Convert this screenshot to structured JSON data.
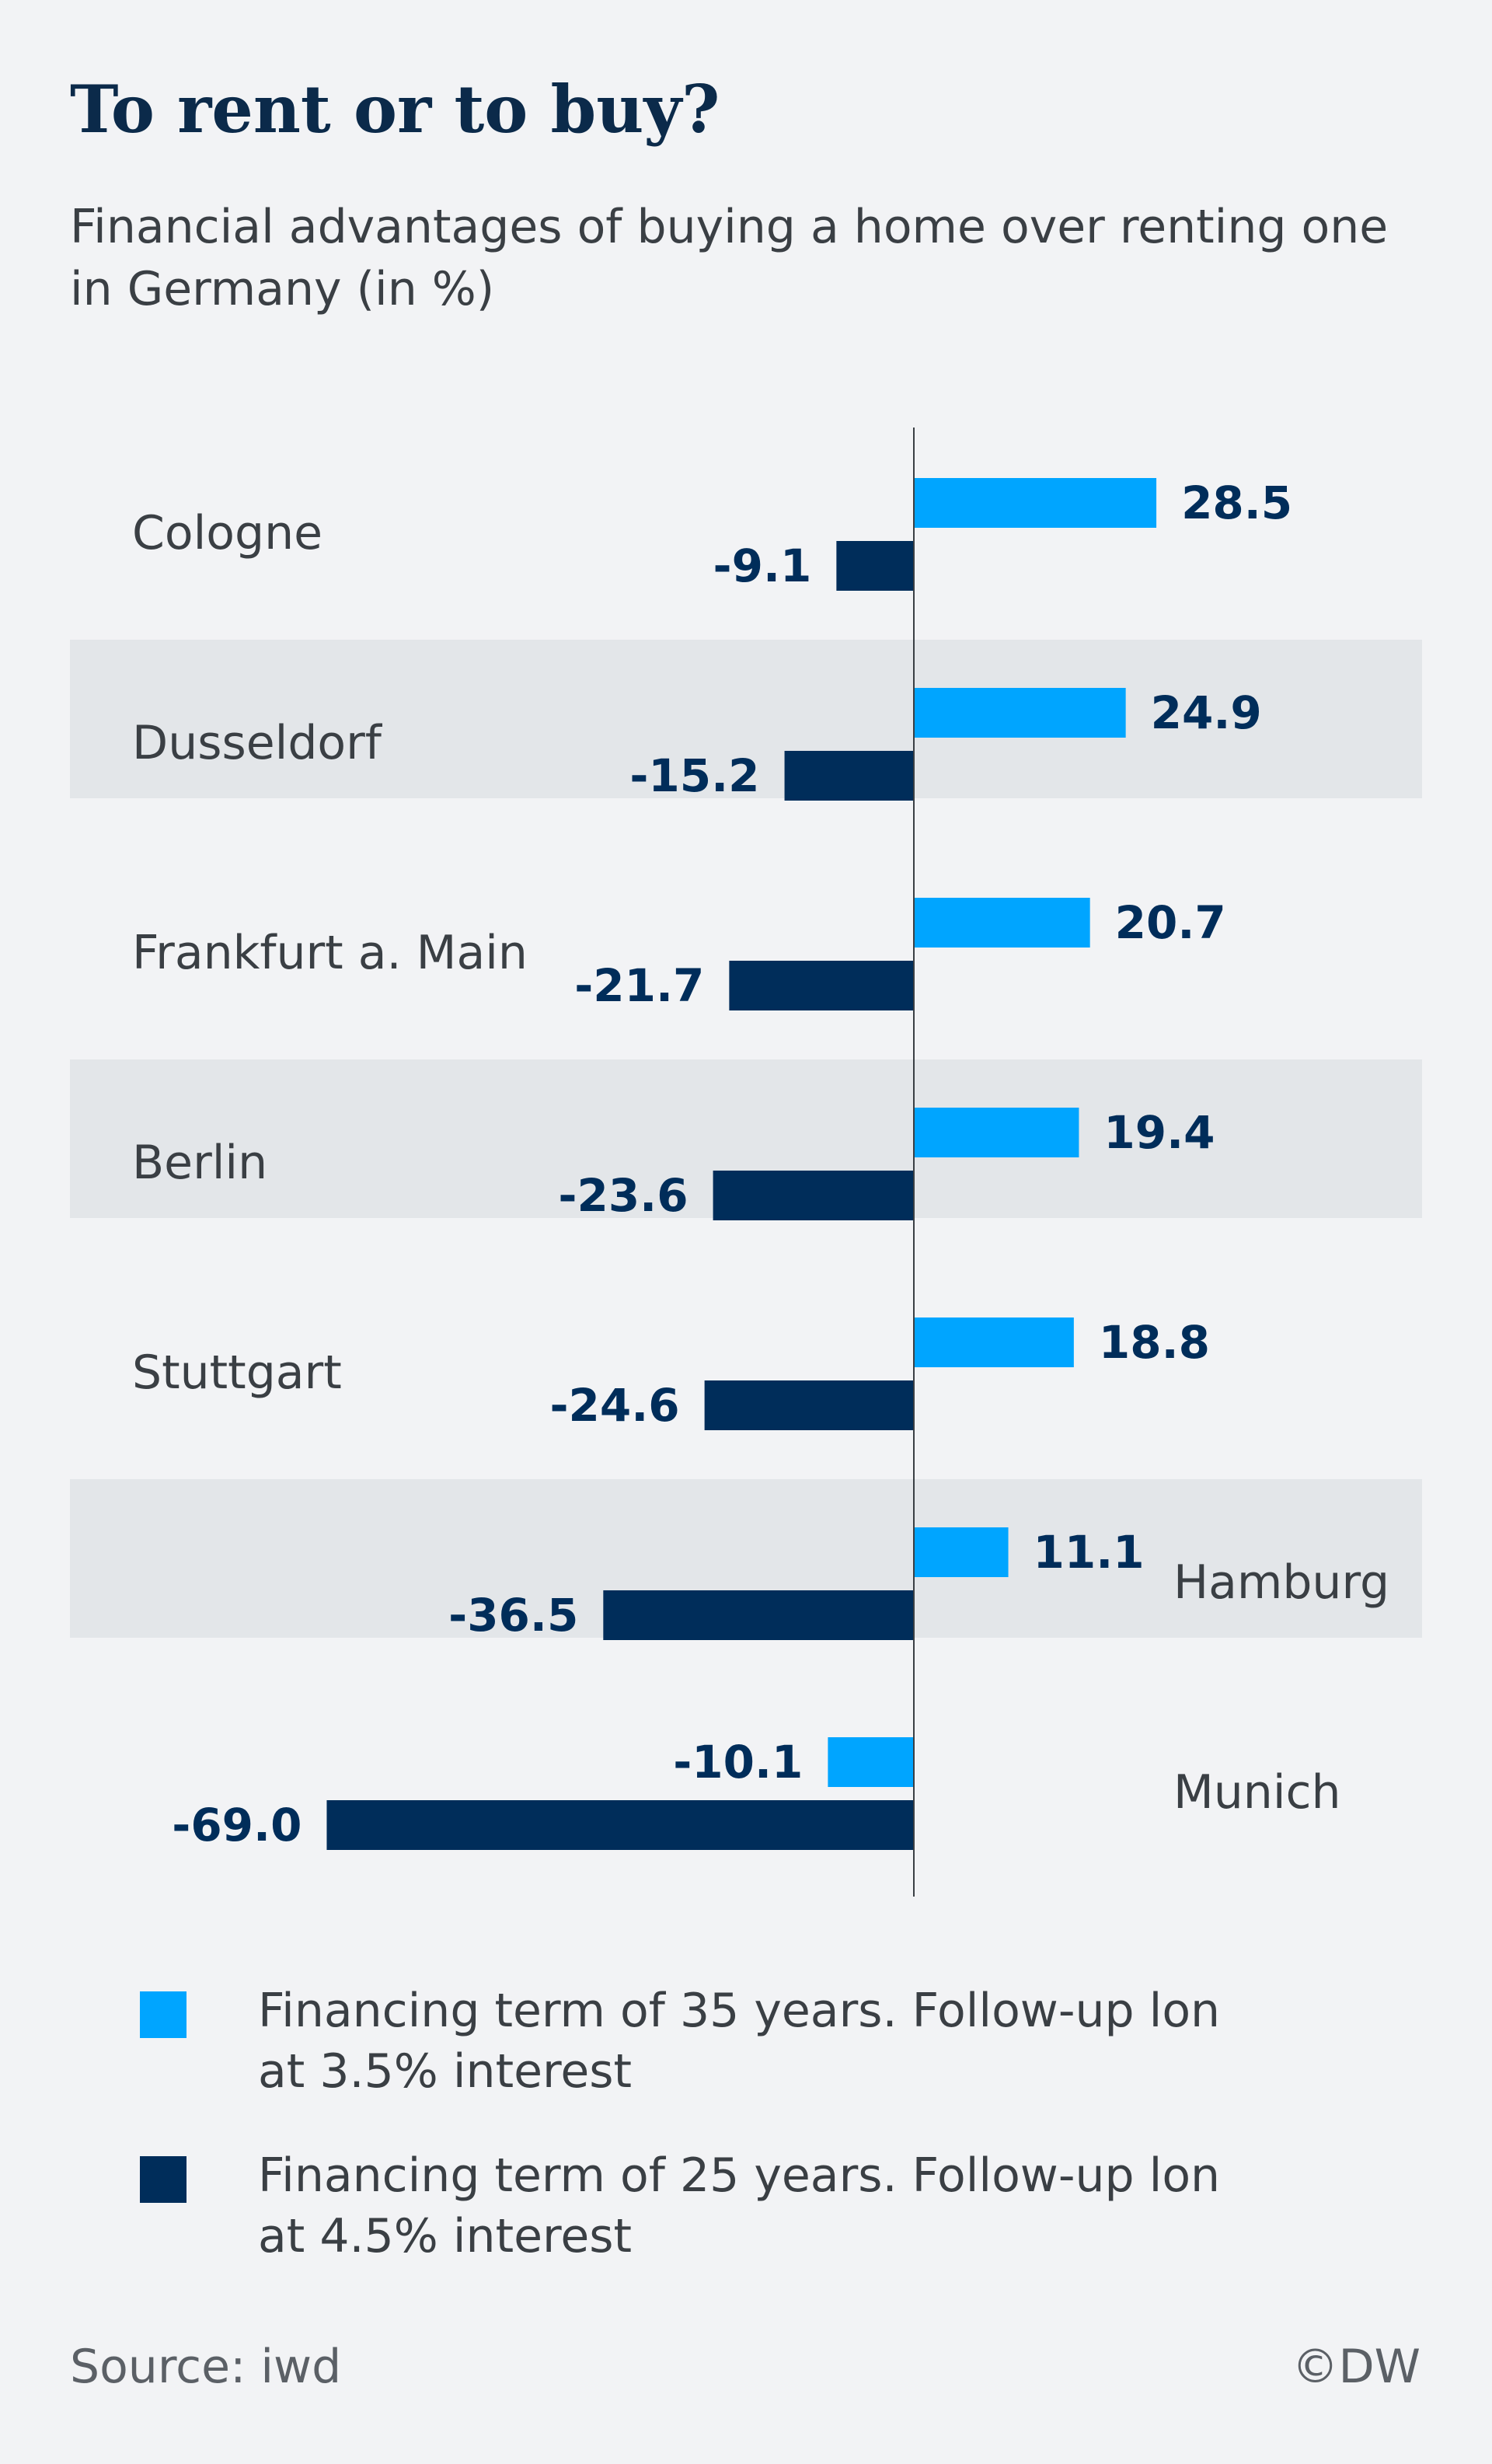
{
  "title": "To rent or to buy?",
  "subtitle": "Financial advantages of buying a home over renting one in Germany (in %)",
  "colors": {
    "series_35": "#00a5ff",
    "series_25": "#002d5a",
    "band": "#e3e6e9",
    "axis": "#3a3f44",
    "label": "#002d5a",
    "city": "#3a3f44"
  },
  "chart_data": {
    "type": "bar",
    "orientation": "horizontal",
    "categories": [
      "Cologne",
      "Dusseldorf",
      "Frankfurt a. Main",
      "Berlin",
      "Stuttgart",
      "Hamburg",
      "Munich"
    ],
    "series": [
      {
        "name": "Financing term of 35 years. Follow-up lon at 3.5% interest",
        "values": [
          28.5,
          24.9,
          20.7,
          19.4,
          18.8,
          11.1,
          -10.1
        ],
        "labels": [
          "28.5",
          "24.9",
          "20.7",
          "19.4",
          "18.8",
          "11.1",
          "-10.1"
        ]
      },
      {
        "name": "Financing term of 25 years. Follow-up lon at 4.5% interest",
        "values": [
          -9.1,
          -15.2,
          -21.7,
          -23.6,
          -24.6,
          -36.5,
          -69.0
        ],
        "labels": [
          "-9.1",
          "-15.2",
          "-21.7",
          "-23.6",
          "-24.6",
          "-36.5",
          "-69.0"
        ]
      }
    ],
    "shaded_rows": [
      1,
      3,
      5
    ],
    "category_label_side": [
      "left",
      "left",
      "left",
      "left",
      "left",
      "right",
      "right"
    ],
    "xlim": [
      -69.0,
      28.5
    ],
    "grid": false,
    "legend_position": "bottom"
  },
  "legend": {
    "items": [
      {
        "label": "Financing term of 35 years. Follow-up lon\nat 3.5% interest"
      },
      {
        "label": "Financing term of 25 years. Follow-up lon\nat 4.5% interest"
      }
    ]
  },
  "footer": {
    "source": "Source: iwd",
    "credit": "©DW"
  }
}
